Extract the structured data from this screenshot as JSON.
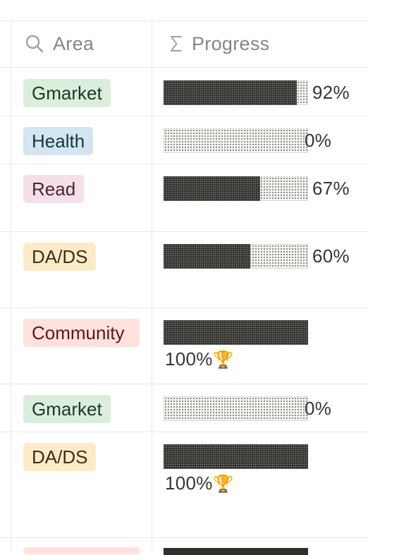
{
  "header": {
    "area_label": "Area",
    "area_icon": "search-icon",
    "progress_label": "Progress",
    "progress_icon": "sigma-icon"
  },
  "rows": [
    {
      "area": "Gmarket",
      "area_color": "green",
      "progress": 0.92,
      "progress_text": "92%"
    },
    {
      "area": "Health",
      "area_color": "blue",
      "progress": 0.0,
      "progress_text": "0%"
    },
    {
      "area": "Read",
      "area_color": "pink",
      "progress": 0.67,
      "progress_text": "67%"
    },
    {
      "area": "DA/DS",
      "area_color": "yellow",
      "progress": 0.6,
      "progress_text": "60%"
    },
    {
      "area": "Community",
      "area_color": "red",
      "progress": 1.0,
      "progress_text": "100%",
      "badge": "🏆"
    },
    {
      "area": "Gmarket",
      "area_color": "green",
      "progress": 0.0,
      "progress_text": "0%"
    },
    {
      "area": "DA/DS",
      "area_color": "yellow",
      "progress": 1.0,
      "progress_text": "100%",
      "badge": "🏆"
    }
  ],
  "colors": {
    "green": {
      "bg": "#dbeddb",
      "fg": "#1c3829"
    },
    "blue": {
      "bg": "#d3e5ef",
      "fg": "#183347"
    },
    "pink": {
      "bg": "#f5e0e9",
      "fg": "#4c2337"
    },
    "yellow": {
      "bg": "#fbecc7",
      "fg": "#402c1b"
    },
    "red": {
      "bg": "#ffe2dd",
      "fg": "#5d1715"
    }
  }
}
